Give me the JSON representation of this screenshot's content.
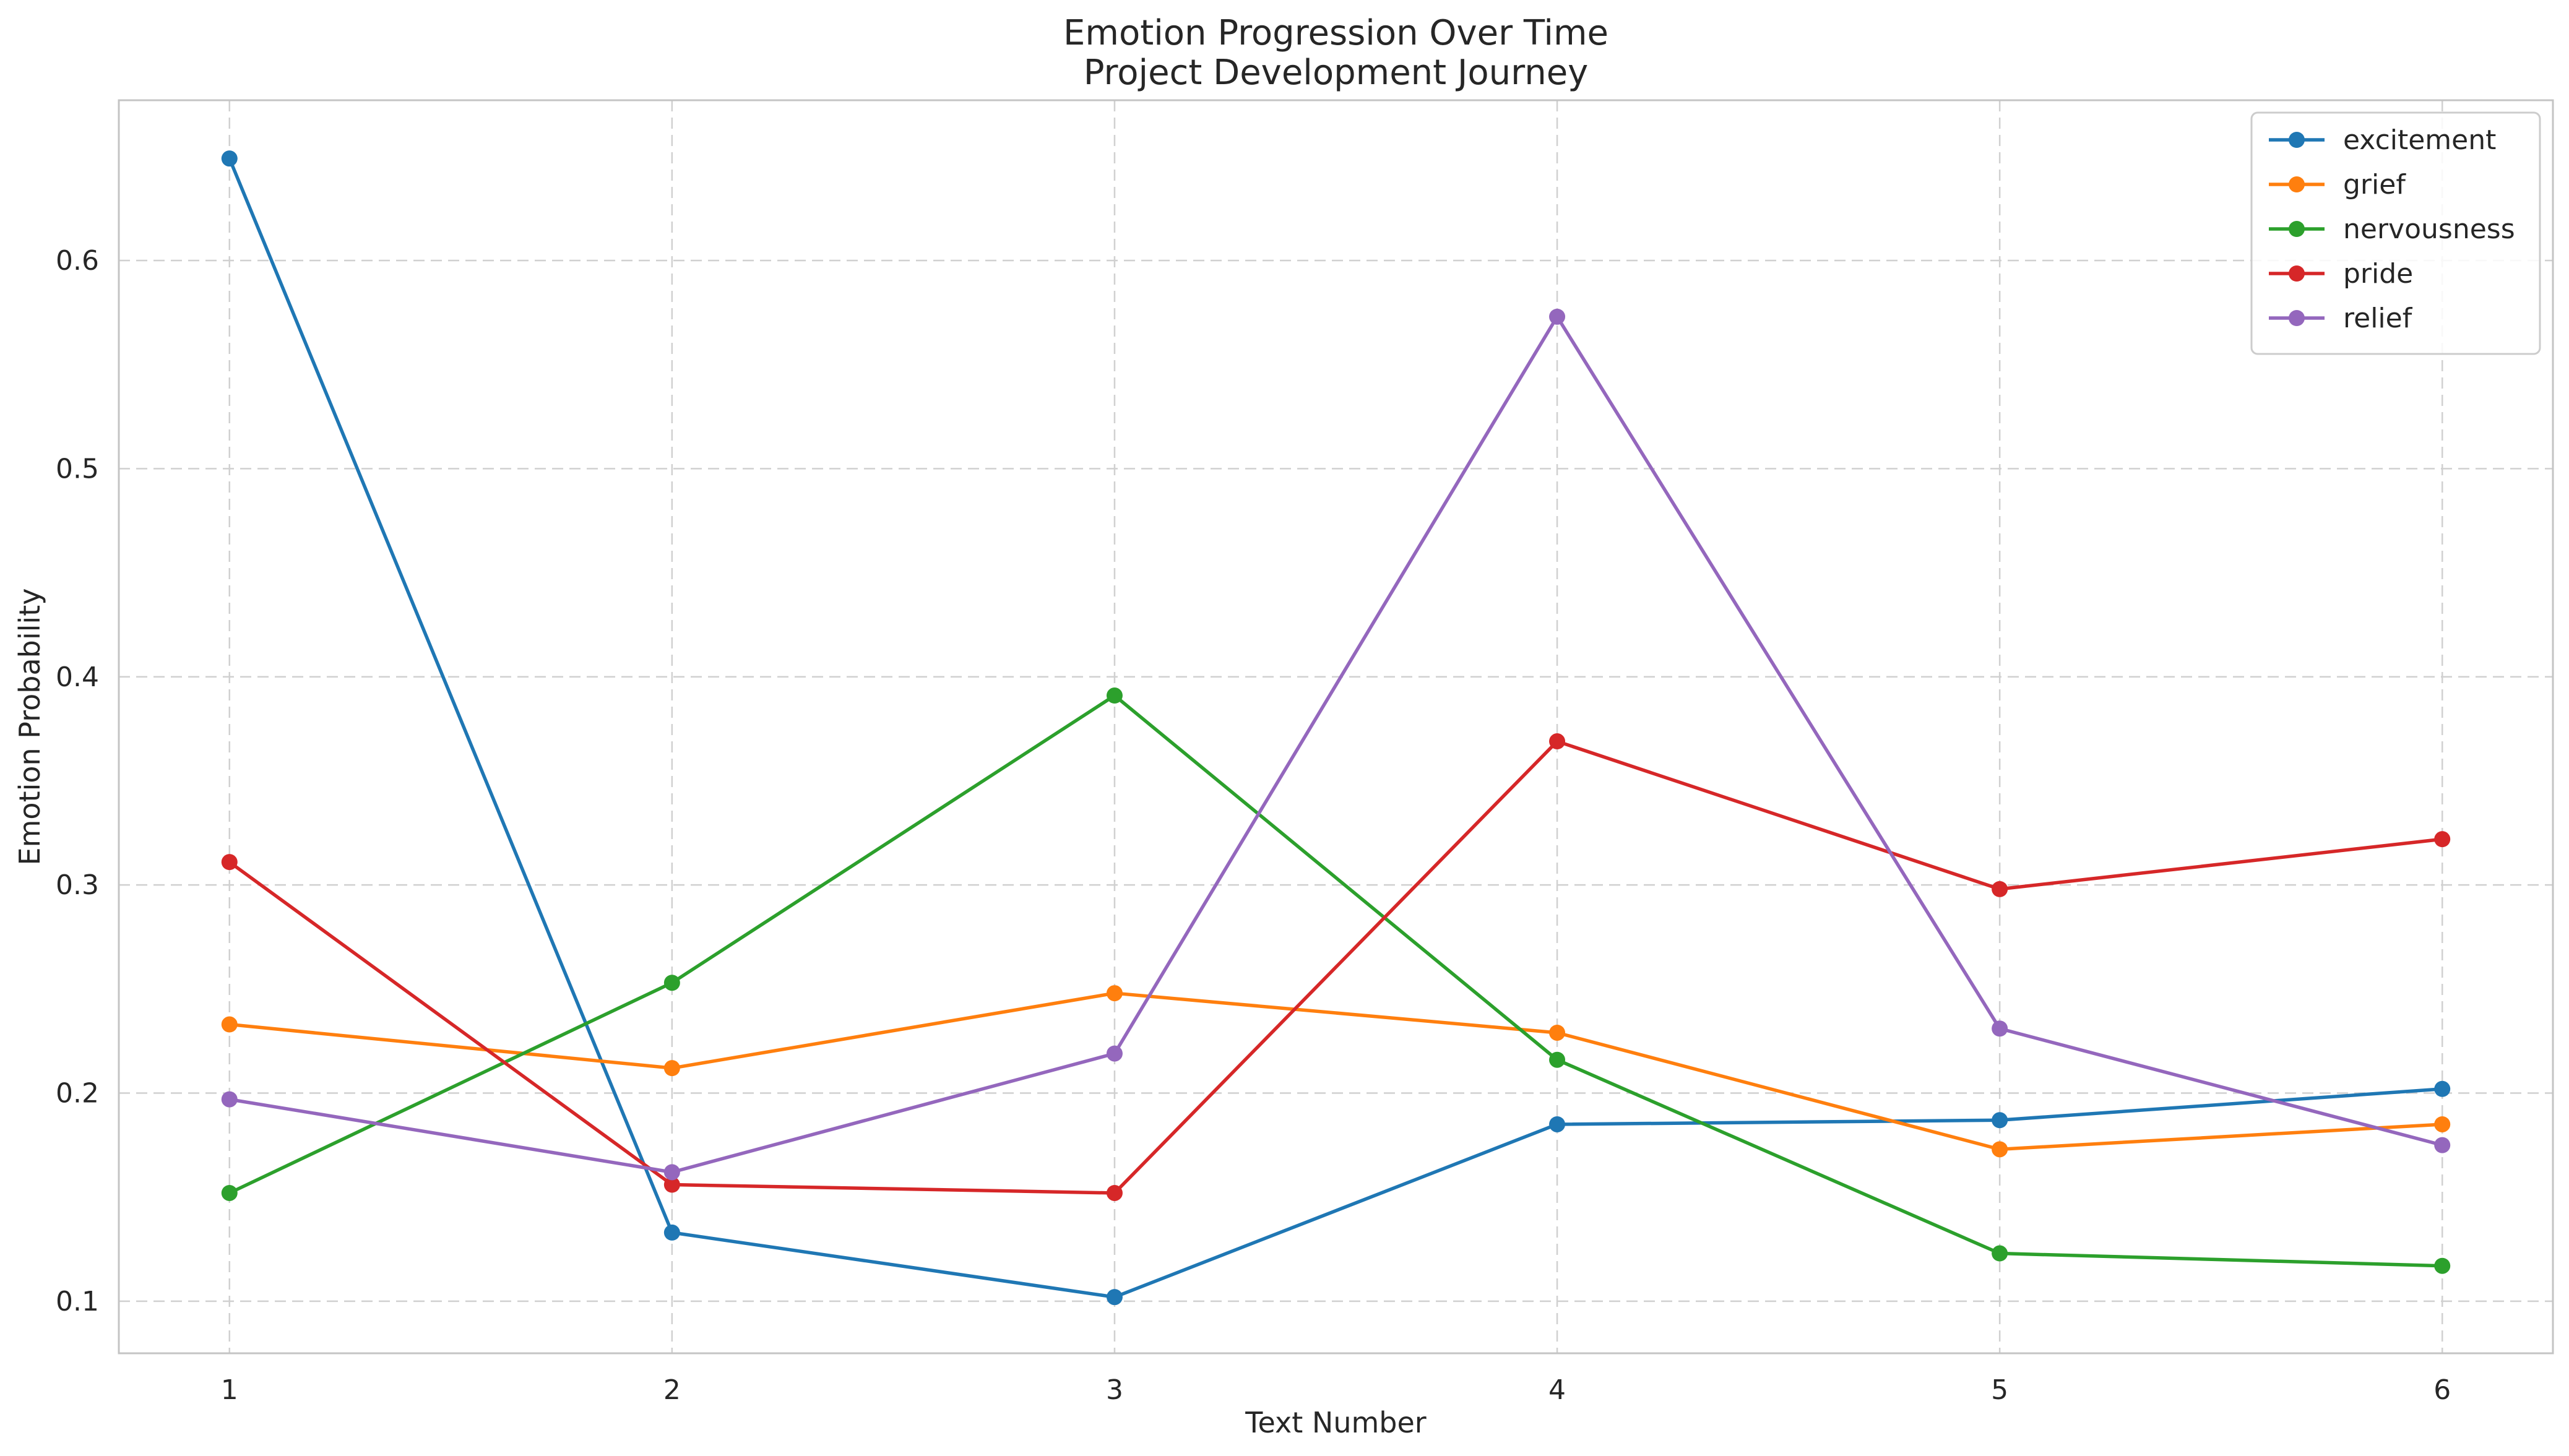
{
  "chart_data": {
    "type": "line",
    "title": "Emotion Progression Over Time",
    "subtitle": "Project Development Journey",
    "xlabel": "Text Number",
    "ylabel": "Emotion Probability",
    "x": [
      1,
      2,
      3,
      4,
      5,
      6
    ],
    "xlim": [
      0.75,
      6.25
    ],
    "ylim": [
      0.075,
      0.677
    ],
    "yticks": [
      0.1,
      0.2,
      0.3,
      0.4,
      0.5,
      0.6
    ],
    "ytick_labels": [
      "0.1",
      "0.2",
      "0.3",
      "0.4",
      "0.5",
      "0.6"
    ],
    "xtick_labels": [
      "1",
      "2",
      "3",
      "4",
      "5",
      "6"
    ],
    "grid": true,
    "legend_position": "top-right",
    "series": [
      {
        "name": "excitement",
        "color": "#1f77b4",
        "values": [
          0.649,
          0.133,
          0.102,
          0.185,
          0.187,
          0.202
        ]
      },
      {
        "name": "grief",
        "color": "#ff7f0e",
        "values": [
          0.233,
          0.212,
          0.248,
          0.229,
          0.173,
          0.185
        ]
      },
      {
        "name": "nervousness",
        "color": "#2ca02c",
        "values": [
          0.152,
          0.253,
          0.391,
          0.216,
          0.123,
          0.117
        ]
      },
      {
        "name": "pride",
        "color": "#d62728",
        "values": [
          0.311,
          0.156,
          0.152,
          0.369,
          0.298,
          0.322
        ]
      },
      {
        "name": "relief",
        "color": "#9467bd",
        "values": [
          0.197,
          0.162,
          0.219,
          0.573,
          0.231,
          0.175
        ]
      }
    ]
  }
}
